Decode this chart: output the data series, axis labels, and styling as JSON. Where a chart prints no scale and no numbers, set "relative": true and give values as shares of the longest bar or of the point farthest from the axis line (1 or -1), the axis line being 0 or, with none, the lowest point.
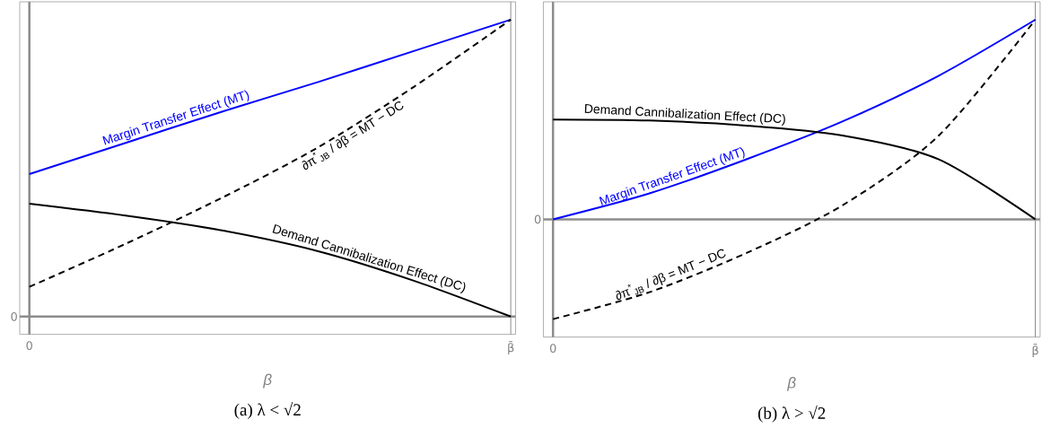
{
  "chart_data": [
    {
      "type": "line",
      "relative": true,
      "title": "(a) λ < √2",
      "xlabel": "β",
      "categories": [
        "0",
        null,
        null,
        null,
        null,
        "β̄"
      ],
      "ref_lines": [
        {
          "axis": "y",
          "value": 0,
          "label": "0"
        },
        {
          "axis": "x",
          "value": "β̄"
        }
      ],
      "series": [
        {
          "name": "Margin Transfer Effect (MT)",
          "color": "#0000ff",
          "line_style": "solid",
          "values": [
            0.48,
            0.585,
            0.69,
            0.79,
            0.895,
            1.0
          ]
        },
        {
          "name": "Demand Cannibalization Effect (DC)",
          "color": "#000000",
          "line_style": "solid",
          "values": [
            0.38,
            0.34,
            0.29,
            0.22,
            0.12,
            0
          ]
        },
        {
          "name": "∂π$^{*}$$_{JB}$ / ∂β = MT − DC",
          "color": "#000000",
          "line_style": "dashed",
          "values": [
            0.1,
            0.245,
            0.4,
            0.57,
            0.775,
            1.0
          ]
        }
      ]
    },
    {
      "type": "line",
      "relative": true,
      "title": "(b) λ > √2",
      "xlabel": "β",
      "categories": [
        "0",
        null,
        null,
        null,
        null,
        "β̄"
      ],
      "ref_lines": [
        {
          "axis": "y",
          "value": 0,
          "label": "0"
        },
        {
          "axis": "x",
          "value": "β̄"
        }
      ],
      "series": [
        {
          "name": "Margin Transfer Effect (MT)",
          "color": "#0000ff",
          "line_style": "solid",
          "values": [
            0,
            0.13,
            0.3,
            0.49,
            0.72,
            1.0
          ]
        },
        {
          "name": "Demand Cannibalization Effect (DC)",
          "color": "#000000",
          "line_style": "solid",
          "values": [
            0.5,
            0.495,
            0.47,
            0.42,
            0.3,
            0
          ]
        },
        {
          "name": "∂π$^{*}$$_{JB}$ / ∂β = MT − DC",
          "color": "#000000",
          "line_style": "dashed",
          "values": [
            -0.5,
            -0.365,
            -0.17,
            0.07,
            0.42,
            1.0
          ]
        }
      ]
    }
  ]
}
